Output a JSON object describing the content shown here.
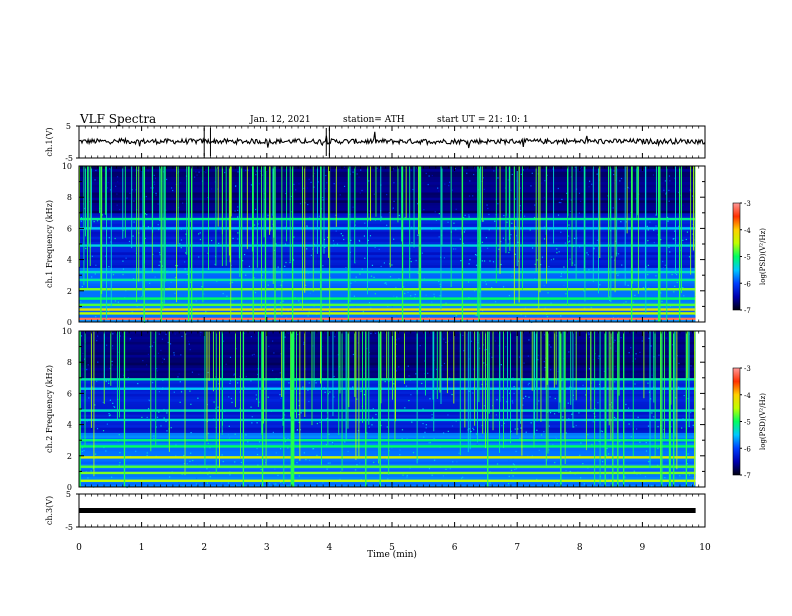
{
  "header": {
    "title": "VLF Spectra",
    "date": "Jan. 12, 2021",
    "station": "station= ATH",
    "start": "start  UT =  21: 10: 1"
  },
  "chart_data": [
    {
      "type": "line",
      "panel": "ch1-waveform",
      "ylabel": "ch.1(V)",
      "ylim": [
        -5,
        5
      ],
      "yticks": [
        "5",
        "-5"
      ],
      "xlim": [
        0,
        10
      ],
      "baseline": 0.2
    },
    {
      "type": "heatmap",
      "panel": "ch1-spectrogram",
      "ylabel": "ch.1 Frequency (kHz)",
      "ylim": [
        0,
        10
      ],
      "yticks": [
        "0",
        "2",
        "4",
        "6",
        "8",
        "10"
      ],
      "xlim": [
        0,
        9.85
      ],
      "colorbar": {
        "label": "log(PSD)(V²/Hz)",
        "ticks": [
          "-3",
          "-4",
          "-5",
          "-6",
          "-7"
        ],
        "range": [
          -7,
          -3
        ]
      },
      "bands": [
        {
          "f": 0.2,
          "v": 0.95
        },
        {
          "f": 0.55,
          "v": 0.62
        },
        {
          "f": 0.8,
          "v": 0.7
        },
        {
          "f": 1.1,
          "v": 0.55
        },
        {
          "f": 1.5,
          "v": 0.5
        },
        {
          "f": 2.1,
          "v": 0.58
        },
        {
          "f": 2.7,
          "v": 0.45
        },
        {
          "f": 3.2,
          "v": 0.42
        },
        {
          "f": 4.9,
          "v": 0.4
        },
        {
          "f": 6.0,
          "v": 0.38
        },
        {
          "f": 6.6,
          "v": 0.46
        }
      ]
    },
    {
      "type": "heatmap",
      "panel": "ch2-spectrogram",
      "ylabel": "ch.2 Frequency (kHz)",
      "ylim": [
        0,
        10
      ],
      "yticks": [
        "0",
        "2",
        "4",
        "6",
        "8",
        "10"
      ],
      "xlim": [
        0,
        9.85
      ],
      "colorbar": {
        "label": "log(PSD)(V²/Hz)",
        "ticks": [
          "-3",
          "-4",
          "-5",
          "-6",
          "-7"
        ],
        "range": [
          -7,
          -3
        ]
      },
      "bands": [
        {
          "f": 0.4,
          "v": 0.62
        },
        {
          "f": 0.9,
          "v": 0.58
        },
        {
          "f": 1.3,
          "v": 0.55
        },
        {
          "f": 1.9,
          "v": 0.66
        },
        {
          "f": 2.6,
          "v": 0.5
        },
        {
          "f": 3.0,
          "v": 0.48
        },
        {
          "f": 4.3,
          "v": 0.4
        },
        {
          "f": 4.9,
          "v": 0.42
        },
        {
          "f": 6.3,
          "v": 0.38
        },
        {
          "f": 6.9,
          "v": 0.44
        }
      ]
    },
    {
      "type": "line",
      "panel": "ch3-waveform",
      "ylabel": "ch.3(V)",
      "ylim": [
        -5,
        5
      ],
      "yticks": [
        "5",
        "-5"
      ],
      "xlim": [
        0,
        9.85
      ],
      "baseline": 0.0
    }
  ],
  "x_axis": {
    "label": "Time (min)",
    "ticks": [
      "0",
      "1",
      "2",
      "3",
      "4",
      "5",
      "6",
      "7",
      "8",
      "9",
      "10"
    ]
  },
  "colors": {
    "scale": [
      "#000010",
      "#0000b0",
      "#0040ff",
      "#00c8ff",
      "#00ff60",
      "#c0ff00",
      "#ffd000",
      "#ff3000",
      "#ff9a9a"
    ]
  }
}
